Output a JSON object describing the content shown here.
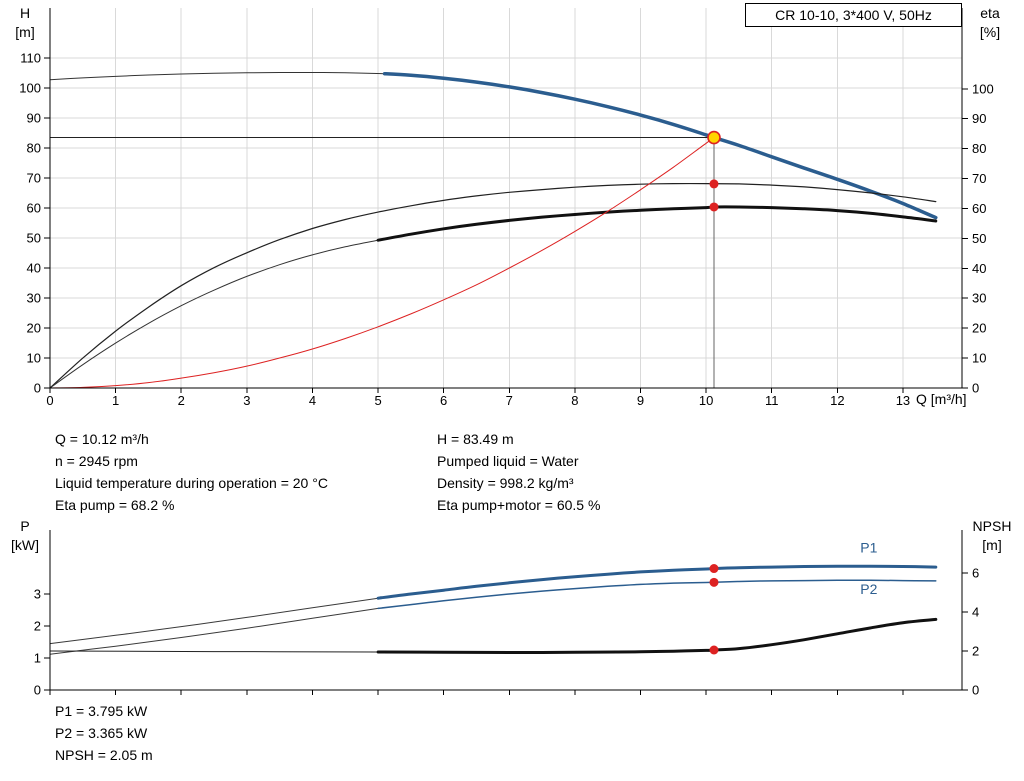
{
  "duty_info": {
    "left": [
      "Q = 10.12 m³/h",
      "n = 2945 rpm",
      "Liquid temperature during operation = 20 °C",
      "Eta pump = 68.2 %"
    ],
    "right": [
      "H = 83.49 m",
      "Pumped liquid = Water",
      "Density = 998.2 kg/m³",
      "Eta pump+motor = 60.5 %"
    ]
  },
  "power_info": [
    "P1 = 3.795 kW",
    "P2 = 3.365 kW",
    "NPSH = 2.05 m"
  ],
  "colors": {
    "curve_blue": "#2b5d8f",
    "marker_red": "#dd2222",
    "duty_yellow": "#ffd500",
    "grid": "#d9d9d9",
    "axis": "#000000",
    "thin_curve": "#333333"
  },
  "chart_data": [
    {
      "id": "hq-chart",
      "type": "line",
      "title": "CR 10-10, 3*400 V, 50Hz",
      "x_axis": {
        "label": "Q [m³/h]",
        "min": 0,
        "max": 13.9,
        "ticks": [
          0,
          1,
          2,
          3,
          4,
          5,
          6,
          7,
          8,
          9,
          10,
          11,
          12,
          13
        ],
        "show_tick_labels": true
      },
      "left_axis": {
        "title_line1": "H",
        "title_line2": "[m]",
        "min": 0,
        "max": 126.7,
        "ticks": [
          0,
          10,
          20,
          30,
          40,
          50,
          60,
          70,
          80,
          90,
          100,
          110
        ]
      },
      "right_axis": {
        "title_line1": "eta",
        "title_line2": "[%]",
        "min": 0,
        "max": 127,
        "ticks": [
          0,
          10,
          20,
          30,
          40,
          50,
          60,
          70,
          80,
          90,
          100
        ]
      },
      "grid": true,
      "series": [
        {
          "name": "head-curve-thin",
          "axis": "left",
          "color": "#333333",
          "width": 1,
          "points": [
            [
              0,
              102.8
            ],
            [
              0.5,
              103.4
            ],
            [
              1,
              103.9
            ],
            [
              1.5,
              104.35
            ],
            [
              2,
              104.7
            ],
            [
              2.5,
              104.95
            ],
            [
              3,
              105.1
            ],
            [
              3.5,
              105.2
            ],
            [
              4,
              105.2
            ],
            [
              4.5,
              105.1
            ],
            [
              5.1,
              104.8
            ]
          ]
        },
        {
          "name": "head-curve",
          "axis": "left",
          "color": "#2b5d8f",
          "width": 3.5,
          "points": [
            [
              5.1,
              104.8
            ],
            [
              5.5,
              104.3
            ],
            [
              6,
              103.3
            ],
            [
              6.5,
              102.0
            ],
            [
              7,
              100.4
            ],
            [
              7.5,
              98.5
            ],
            [
              8,
              96.3
            ],
            [
              8.5,
              93.8
            ],
            [
              9,
              91.0
            ],
            [
              9.5,
              87.9
            ],
            [
              10,
              84.4
            ],
            [
              10.12,
              83.49
            ],
            [
              10.5,
              80.9
            ],
            [
              11,
              77.1
            ],
            [
              11.5,
              73.3
            ],
            [
              12,
              69.6
            ],
            [
              12.5,
              65.7
            ],
            [
              13,
              61.5
            ],
            [
              13.5,
              56.8
            ]
          ]
        },
        {
          "name": "eta-pump-curve",
          "axis": "right",
          "color": "#222222",
          "width": 1.2,
          "points": [
            [
              0,
              0
            ],
            [
              0.5,
              10
            ],
            [
              1,
              19
            ],
            [
              1.5,
              27
            ],
            [
              2,
              34.2
            ],
            [
              2.5,
              40.2
            ],
            [
              3,
              45.2
            ],
            [
              3.5,
              49.6
            ],
            [
              4,
              53.3
            ],
            [
              4.5,
              56.3
            ],
            [
              5,
              58.8
            ],
            [
              5.5,
              60.9
            ],
            [
              6,
              62.7
            ],
            [
              6.5,
              64.2
            ],
            [
              7,
              65.4
            ],
            [
              7.5,
              66.3
            ],
            [
              8,
              67.1
            ],
            [
              8.5,
              67.7
            ],
            [
              9,
              68.1
            ],
            [
              9.5,
              68.3
            ],
            [
              10,
              68.3
            ],
            [
              10.5,
              68.2
            ],
            [
              11,
              67.8
            ],
            [
              11.5,
              67.2
            ],
            [
              12,
              66.3
            ],
            [
              12.5,
              65.2
            ],
            [
              13,
              63.9
            ],
            [
              13.5,
              62.3
            ]
          ]
        },
        {
          "name": "eta-pump-motor-thin",
          "axis": "right",
          "color": "#333333",
          "width": 1,
          "points": [
            [
              0,
              0
            ],
            [
              0.5,
              7.8
            ],
            [
              1,
              15
            ],
            [
              1.5,
              21.6
            ],
            [
              2,
              27.5
            ],
            [
              2.5,
              32.7
            ],
            [
              3,
              37.3
            ],
            [
              3.5,
              41.2
            ],
            [
              4,
              44.5
            ],
            [
              4.5,
              47.2
            ],
            [
              5,
              49.4
            ]
          ]
        },
        {
          "name": "eta-pump-motor-curve",
          "axis": "right",
          "color": "#111111",
          "width": 3,
          "points": [
            [
              5,
              49.4
            ],
            [
              5.5,
              51.4
            ],
            [
              6,
              53.2
            ],
            [
              6.5,
              54.7
            ],
            [
              7,
              56.0
            ],
            [
              7.5,
              57.1
            ],
            [
              8,
              58.0
            ],
            [
              8.5,
              58.8
            ],
            [
              9,
              59.4
            ],
            [
              9.5,
              59.9
            ],
            [
              10,
              60.3
            ],
            [
              10.12,
              60.5
            ],
            [
              10.5,
              60.5
            ],
            [
              11,
              60.3
            ],
            [
              11.5,
              59.9
            ],
            [
              12,
              59.3
            ],
            [
              12.5,
              58.4
            ],
            [
              13,
              57.2
            ],
            [
              13.5,
              55.8
            ]
          ]
        },
        {
          "name": "system-curve",
          "axis": "left",
          "color": "#dd2222",
          "width": 1,
          "points": [
            [
              0,
              0
            ],
            [
              0.5,
              0.2
            ],
            [
              1,
              0.8
            ],
            [
              1.5,
              1.8
            ],
            [
              2,
              3.3
            ],
            [
              2.5,
              5.1
            ],
            [
              3,
              7.3
            ],
            [
              3.5,
              10.0
            ],
            [
              4,
              13.0
            ],
            [
              4.5,
              16.5
            ],
            [
              5,
              20.4
            ],
            [
              5.5,
              24.7
            ],
            [
              6,
              29.4
            ],
            [
              6.5,
              34.4
            ],
            [
              7,
              40.0
            ],
            [
              7.5,
              45.9
            ],
            [
              8,
              52.2
            ],
            [
              8.5,
              58.9
            ],
            [
              9,
              66.1
            ],
            [
              9.5,
              73.6
            ],
            [
              10,
              81.6
            ],
            [
              10.12,
              83.49
            ]
          ]
        }
      ],
      "ref_lines": [
        {
          "name": "duty-head-line",
          "axis": "left",
          "from": [
            0,
            83.49
          ],
          "to": [
            10.12,
            83.49
          ],
          "color": "#222222",
          "width": 1
        },
        {
          "name": "duty-flow-line",
          "axis": "left",
          "from": [
            10.12,
            0
          ],
          "to": [
            10.12,
            83.49
          ],
          "color": "#666666",
          "width": 1
        }
      ],
      "markers": [
        {
          "name": "eta-pump-point",
          "axis": "right",
          "q": 10.12,
          "value": 68.2,
          "r": 4.5,
          "fill": "#dd2222"
        },
        {
          "name": "eta-pump-motor-point",
          "axis": "right",
          "q": 10.12,
          "value": 60.5,
          "r": 4.5,
          "fill": "#dd2222"
        },
        {
          "name": "duty-point",
          "axis": "left",
          "q": 10.12,
          "value": 83.49,
          "r": 6,
          "fill": "#ffd500",
          "stroke": "#dd2222",
          "stroke_width": 1.6
        }
      ],
      "labels": []
    },
    {
      "id": "power-npsh-chart",
      "type": "line",
      "title": "",
      "x_axis": {
        "label": "",
        "min": 0,
        "max": 13.9,
        "ticks": [
          0,
          1,
          2,
          3,
          4,
          5,
          6,
          7,
          8,
          9,
          10,
          11,
          12,
          13
        ],
        "show_tick_labels": false
      },
      "left_axis": {
        "title_line1": "P",
        "title_line2": "[kW]",
        "min": 0,
        "max": 5,
        "ticks": [
          0,
          1,
          2,
          3
        ]
      },
      "right_axis": {
        "title_line1": "NPSH",
        "title_line2": "[m]",
        "min": 0,
        "max": 8.2,
        "ticks": [
          0,
          2,
          4,
          6
        ]
      },
      "grid": false,
      "series": [
        {
          "name": "p1-curve-thin",
          "axis": "left",
          "color": "#3a3a3a",
          "width": 1,
          "points": [
            [
              0,
              1.45
            ],
            [
              1,
              1.71
            ],
            [
              2,
              1.98
            ],
            [
              3,
              2.27
            ],
            [
              4,
              2.57
            ],
            [
              5,
              2.87
            ]
          ]
        },
        {
          "name": "p1-curve",
          "axis": "left",
          "color": "#2b5d8f",
          "width": 3,
          "points": [
            [
              5,
              2.87
            ],
            [
              5.5,
              3.0
            ],
            [
              6,
              3.12
            ],
            [
              6.5,
              3.24
            ],
            [
              7,
              3.35
            ],
            [
              7.5,
              3.45
            ],
            [
              8,
              3.54
            ],
            [
              8.5,
              3.62
            ],
            [
              9,
              3.69
            ],
            [
              9.5,
              3.74
            ],
            [
              10,
              3.78
            ],
            [
              10.12,
              3.795
            ],
            [
              10.5,
              3.82
            ],
            [
              11,
              3.84
            ],
            [
              11.5,
              3.86
            ],
            [
              12,
              3.87
            ],
            [
              12.5,
              3.87
            ],
            [
              13,
              3.86
            ],
            [
              13.5,
              3.84
            ]
          ]
        },
        {
          "name": "p2-curve-thin",
          "axis": "left",
          "color": "#3a3a3a",
          "width": 1,
          "points": [
            [
              0,
              1.12
            ],
            [
              1,
              1.37
            ],
            [
              2,
              1.64
            ],
            [
              3,
              1.93
            ],
            [
              4,
              2.24
            ],
            [
              5,
              2.55
            ]
          ]
        },
        {
          "name": "p2-curve",
          "axis": "left",
          "color": "#2b5d8f",
          "width": 1.5,
          "points": [
            [
              5,
              2.55
            ],
            [
              5.5,
              2.67
            ],
            [
              6,
              2.79
            ],
            [
              6.5,
              2.9
            ],
            [
              7,
              3.0
            ],
            [
              7.5,
              3.09
            ],
            [
              8,
              3.17
            ],
            [
              8.5,
              3.24
            ],
            [
              9,
              3.3
            ],
            [
              9.5,
              3.34
            ],
            [
              10,
              3.36
            ],
            [
              10.12,
              3.365
            ],
            [
              10.5,
              3.39
            ],
            [
              11,
              3.41
            ],
            [
              11.5,
              3.42
            ],
            [
              12,
              3.43
            ],
            [
              12.5,
              3.43
            ],
            [
              13,
              3.42
            ],
            [
              13.5,
              3.41
            ]
          ]
        },
        {
          "name": "npsh-curve-thin",
          "axis": "right",
          "color": "#222222",
          "width": 1,
          "points": [
            [
              0,
              2.0
            ],
            [
              2.5,
              1.97
            ],
            [
              5,
              1.95
            ]
          ]
        },
        {
          "name": "npsh-curve",
          "axis": "right",
          "color": "#111111",
          "width": 3,
          "points": [
            [
              5,
              1.95
            ],
            [
              6,
              1.93
            ],
            [
              7,
              1.92
            ],
            [
              8,
              1.93
            ],
            [
              9,
              1.96
            ],
            [
              9.5,
              1.99
            ],
            [
              10,
              2.03
            ],
            [
              10.12,
              2.05
            ],
            [
              10.5,
              2.12
            ],
            [
              11,
              2.32
            ],
            [
              11.5,
              2.58
            ],
            [
              12,
              2.88
            ],
            [
              12.5,
              3.18
            ],
            [
              13,
              3.45
            ],
            [
              13.5,
              3.62
            ]
          ]
        }
      ],
      "ref_lines": [],
      "markers": [
        {
          "name": "p1-point",
          "axis": "left",
          "q": 10.12,
          "value": 3.795,
          "r": 4.5,
          "fill": "#dd2222"
        },
        {
          "name": "p2-point",
          "axis": "left",
          "q": 10.12,
          "value": 3.365,
          "r": 4.5,
          "fill": "#dd2222"
        },
        {
          "name": "npsh-point",
          "axis": "right",
          "q": 10.12,
          "value": 2.05,
          "r": 4.5,
          "fill": "#dd2222"
        }
      ],
      "labels": [
        {
          "name": "p1-series-label",
          "text": "P1",
          "axis": "left",
          "q": 12.35,
          "value": 4.3,
          "color": "#2b5d8f"
        },
        {
          "name": "p2-series-label",
          "text": "P2",
          "axis": "left",
          "q": 12.35,
          "value": 3.0,
          "color": "#2b5d8f"
        }
      ]
    }
  ]
}
